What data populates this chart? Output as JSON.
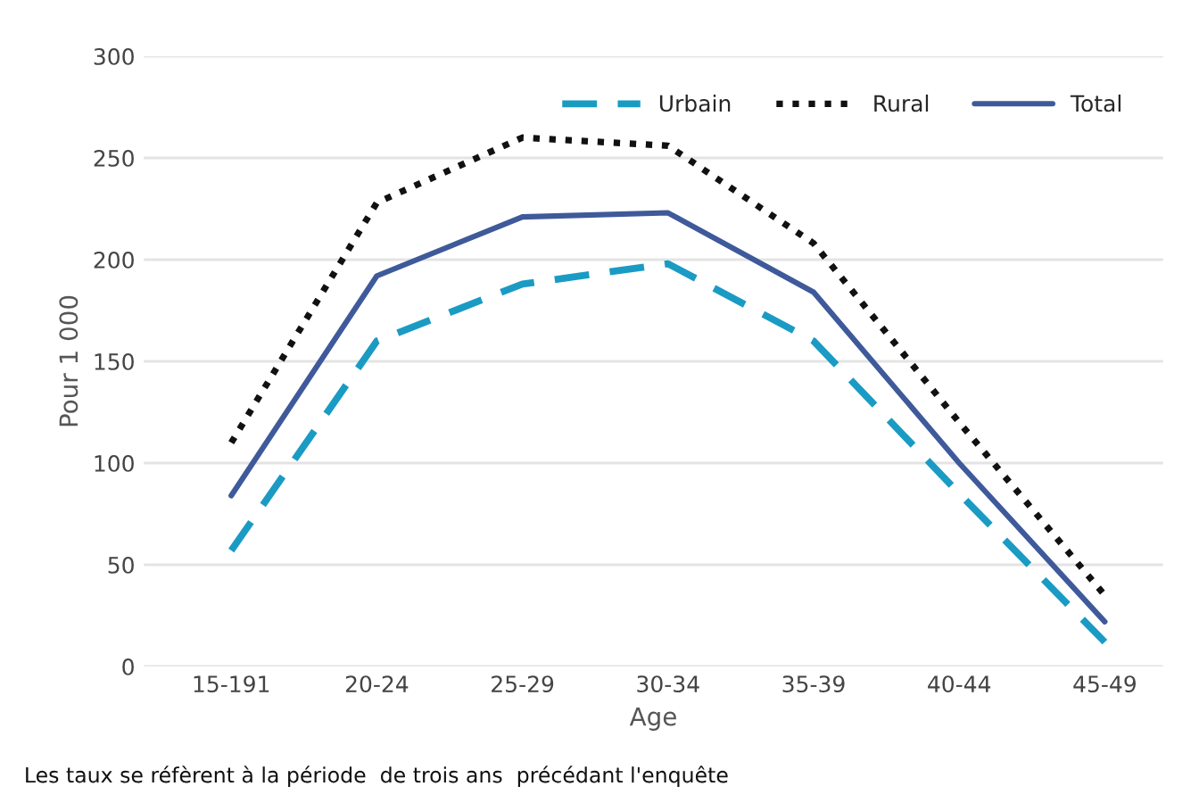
{
  "chart_data": {
    "type": "line",
    "xlabel": "Age",
    "ylabel": "Pour 1 000",
    "categories": [
      "15-191",
      "20-24",
      "25-29",
      "30-34",
      "35-39",
      "40-44",
      "45-49"
    ],
    "series": [
      {
        "name": "Urbain",
        "color": "#1a9bc4",
        "line_style": "dashed",
        "values": [
          57,
          160,
          188,
          198,
          160,
          85,
          12
        ]
      },
      {
        "name": "Rural",
        "color": "#111111",
        "line_style": "dotted",
        "values": [
          110,
          228,
          260,
          256,
          208,
          120,
          35
        ]
      },
      {
        "name": "Total",
        "color": "#3f5a9a",
        "line_style": "solid",
        "values": [
          84,
          192,
          221,
          223,
          184,
          100,
          22
        ]
      }
    ],
    "ylim": [
      0,
      300
    ],
    "yticks": [
      0,
      50,
      100,
      150,
      200,
      250,
      300
    ],
    "grid": "y",
    "legend": "top right",
    "annotations": [
      "Les taux se réfèrent à la période  de trois ans  précédant l'enquête"
    ]
  }
}
